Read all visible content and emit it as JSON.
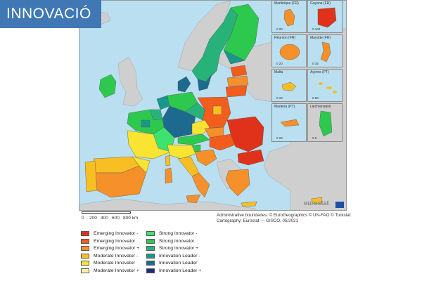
{
  "badge": {
    "label": "INNOVACIÓ"
  },
  "colors": {
    "sea": "#b9dff0",
    "non_eu": "#cfcfcf",
    "emerging_minus": "#e0311b",
    "emerging": "#f25d1e",
    "emerging_plus": "#f5902a",
    "moderate_minus": "#f7bf24",
    "moderate": "#f8e431",
    "moderate_plus": "#fff5a3",
    "strong_minus": "#3de26f",
    "strong": "#2dc94e",
    "strong_plus": "#27b27a",
    "leader_minus": "#18988a",
    "leader": "#1d6a8f",
    "leader_plus": "#1a2c82"
  },
  "insets": [
    {
      "label": "Martinique (FR)",
      "scale": "0   20"
    },
    {
      "label": "Guyane (FR)",
      "scale": "0   100"
    },
    {
      "label": "Réunion (FR)",
      "scale": "0   20"
    },
    {
      "label": "Mayotte (FR)",
      "scale": "0   15"
    },
    {
      "label": "Malta",
      "scale": "0   10"
    },
    {
      "label": "Açores (PT)",
      "scale": "0   50"
    },
    {
      "label": "Madeira (PT)",
      "scale": "0   20"
    },
    {
      "label": "Liechtenstein",
      "scale": "0   5"
    }
  ],
  "branding": {
    "logo_text": "eurostat"
  },
  "scale": {
    "ticks": [
      "0",
      "200",
      "400",
      "600",
      "800 km"
    ]
  },
  "credits": {
    "line1": "Administrative boundaries: © EuroGeographics © UN-FAO © Turkstat",
    "line2": "Cartography: Eurostat — GISCO, 05/2021"
  },
  "legend": [
    {
      "label": "Emerging Innovator -",
      "color": "#e0311b"
    },
    {
      "label": "Emerging Innovator",
      "color": "#f25d1e"
    },
    {
      "label": "Emerging Innovator +",
      "color": "#f5902a"
    },
    {
      "label": "Moderate Innovator -",
      "color": "#f7bf24"
    },
    {
      "label": "Moderate Innovator",
      "color": "#f8e431"
    },
    {
      "label": "Moderate Innovator +",
      "color": "#fff5a3"
    },
    {
      "label": "Strong Innovator -",
      "color": "#3de26f"
    },
    {
      "label": "Strong Innovator",
      "color": "#2dc94e"
    },
    {
      "label": "Strong Innovator +",
      "color": "#27b27a"
    },
    {
      "label": "Innovation Leader -",
      "color": "#18988a"
    },
    {
      "label": "Innovation Leader",
      "color": "#1d6a8f"
    },
    {
      "label": "Innovation Leader +",
      "color": "#1a2c82"
    }
  ]
}
